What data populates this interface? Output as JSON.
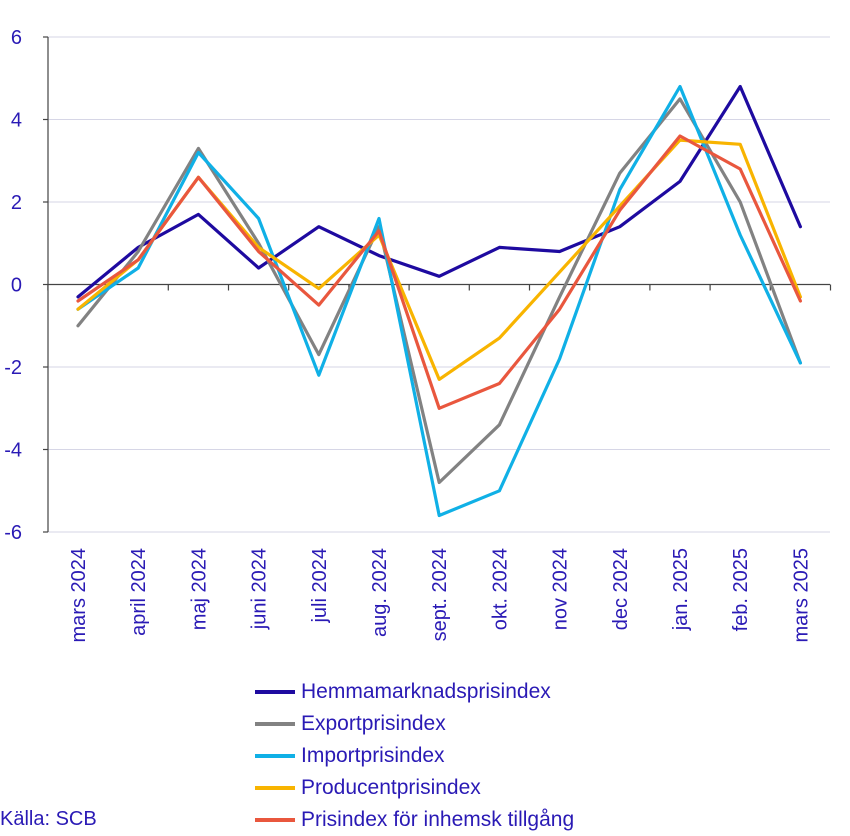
{
  "chart_data": {
    "type": "line",
    "categories": [
      "mars 2024",
      "april 2024",
      "maj 2024",
      "juni 2024",
      "juli 2024",
      "aug. 2024",
      "sept. 2024",
      "okt. 2024",
      "nov 2024",
      "dec 2024",
      "jan. 2025",
      "feb. 2025",
      "mars 2025"
    ],
    "ylim": [
      -6,
      6
    ],
    "yticks": [
      6,
      4,
      2,
      0,
      -2,
      -4,
      -6
    ],
    "ytick_labels": [
      "6",
      "4",
      "2",
      "0",
      "-2",
      "-4",
      "-6"
    ],
    "grid": true,
    "legend_position": "bottom",
    "series": [
      {
        "name": "Hemmamarknadsprisindex",
        "color": "#1e0aa0",
        "values": [
          -0.3,
          0.9,
          1.7,
          0.4,
          1.4,
          0.7,
          0.2,
          0.9,
          0.8,
          1.4,
          2.5,
          4.8,
          1.4
        ]
      },
      {
        "name": "Exportprisindex",
        "color": "#828282",
        "values": [
          -1.0,
          0.8,
          3.3,
          1.0,
          -1.7,
          1.4,
          -4.8,
          -3.4,
          -0.3,
          2.7,
          4.5,
          2.0,
          -1.9
        ]
      },
      {
        "name": "Importprisindex",
        "color": "#10b0e6",
        "values": [
          -0.6,
          0.4,
          3.2,
          1.6,
          -2.2,
          1.6,
          -5.6,
          -5.0,
          -1.8,
          2.3,
          4.8,
          1.2,
          -1.9
        ]
      },
      {
        "name": "Producentprisindex",
        "color": "#f8b400",
        "values": [
          -0.6,
          0.6,
          2.6,
          0.9,
          -0.1,
          1.2,
          -2.3,
          -1.3,
          0.3,
          1.9,
          3.5,
          3.4,
          -0.3
        ]
      },
      {
        "name": "Prisindex för inhemsk tillgång",
        "color": "#e9573e",
        "values": [
          -0.4,
          0.6,
          2.6,
          0.8,
          -0.5,
          1.3,
          -3.0,
          -2.4,
          -0.6,
          1.8,
          3.6,
          2.8,
          -0.4
        ]
      }
    ]
  },
  "source": "Källa: SCB"
}
